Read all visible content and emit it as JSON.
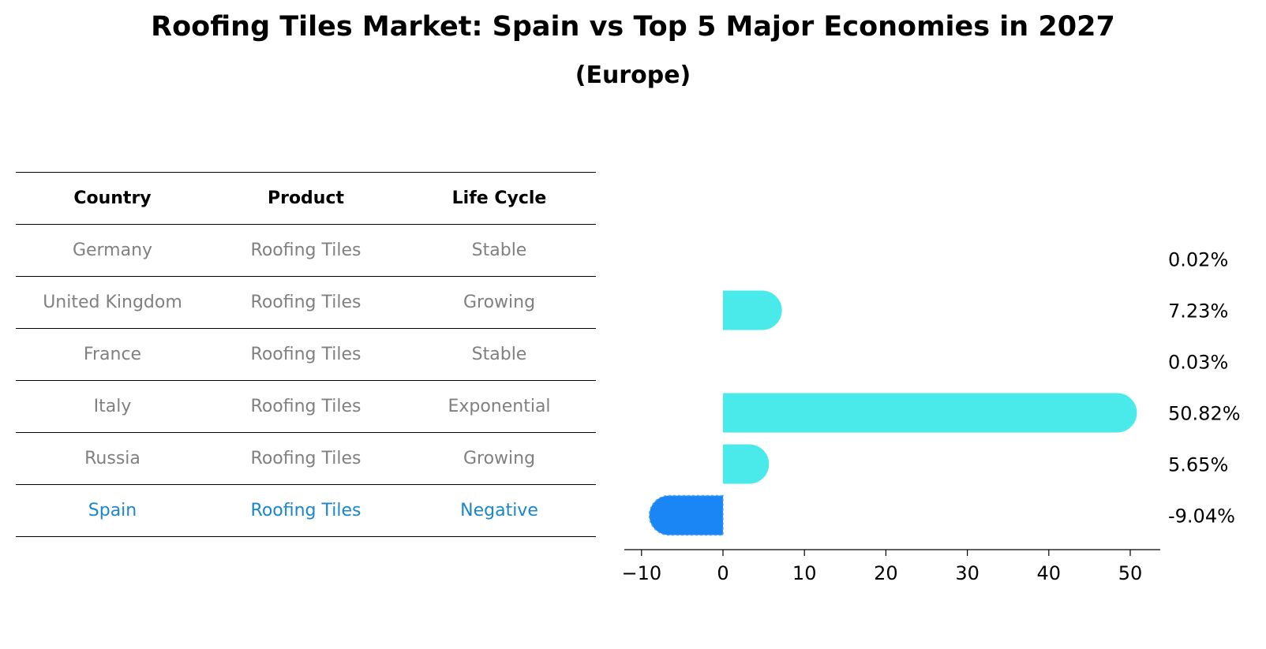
{
  "title": "Roofing Tiles Market: Spain vs Top 5 Major Economies in 2027",
  "subtitle": "(Europe)",
  "table": {
    "headers": [
      "Country",
      "Product",
      "Life Cycle"
    ],
    "rows": [
      {
        "country": "Germany",
        "product": "Roofing Tiles",
        "life_cycle": "Stable"
      },
      {
        "country": "United Kingdom",
        "product": "Roofing Tiles",
        "life_cycle": "Growing"
      },
      {
        "country": "France",
        "product": "Roofing Tiles",
        "life_cycle": "Stable"
      },
      {
        "country": "Italy",
        "product": "Roofing Tiles",
        "life_cycle": "Exponential"
      },
      {
        "country": "Russia",
        "product": "Roofing Tiles",
        "life_cycle": "Growing"
      },
      {
        "country": "Spain",
        "product": "Roofing Tiles",
        "life_cycle": "Negative"
      }
    ]
  },
  "colors": {
    "positive_bar": "#4beaea",
    "negative_bar": "#1a86f5",
    "highlight_text": "#1a86cc",
    "muted_text": "#808080"
  },
  "chart_data": {
    "type": "bar",
    "orientation": "horizontal",
    "categories": [
      "Germany",
      "United Kingdom",
      "France",
      "Italy",
      "Russia",
      "Spain"
    ],
    "values": [
      0.02,
      7.23,
      0.03,
      50.82,
      5.65,
      -9.04
    ],
    "value_labels": [
      "0.02%",
      "7.23%",
      "0.03%",
      "50.82%",
      "5.65%",
      "-9.04%"
    ],
    "x_ticks": [
      -10,
      0,
      10,
      20,
      30,
      40,
      50
    ],
    "x_tick_labels": [
      "−10",
      "0",
      "10",
      "20",
      "30",
      "40",
      "50"
    ],
    "xlim": [
      -12,
      54
    ],
    "xlabel": "",
    "ylabel": "",
    "grid": false
  }
}
